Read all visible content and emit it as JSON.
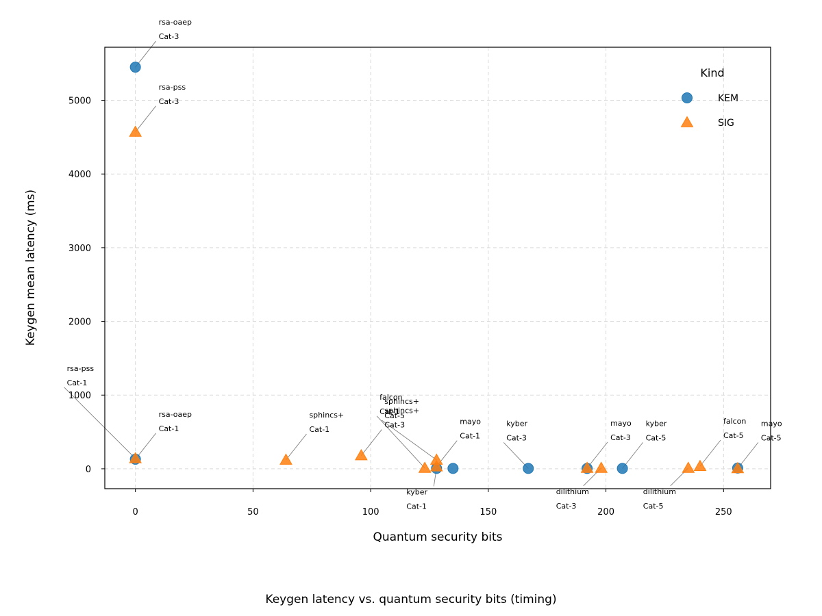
{
  "caption": "Keygen latency vs. quantum security bits (timing)",
  "chart_data": {
    "type": "scatter",
    "title": "",
    "xlabel": "Quantum security bits",
    "ylabel": "Keygen mean latency (ms)",
    "xlim": [
      -13,
      270
    ],
    "ylim": [
      -270,
      5720
    ],
    "xticks": [
      0,
      50,
      100,
      150,
      200,
      250
    ],
    "yticks": [
      0,
      1000,
      2000,
      3000,
      4000,
      5000
    ],
    "grid": true,
    "legend": {
      "title": "Kind",
      "placement": "top-right"
    },
    "colors": {
      "KEM": "#1f77b4",
      "SIG": "#ff7f0e"
    },
    "series": [
      {
        "name": "KEM",
        "marker": "circle",
        "points": [
          {
            "x": 0,
            "y": 5450,
            "label": [
              "rsa-oaep",
              "Cat-3"
            ]
          },
          {
            "x": 0,
            "y": 130,
            "label": [
              "rsa-oaep",
              "Cat-1"
            ]
          },
          {
            "x": 128,
            "y": 5,
            "label": [
              "kyber",
              "Cat-1"
            ]
          },
          {
            "x": 135,
            "y": 5,
            "label": []
          },
          {
            "x": 167,
            "y": 5,
            "label": [
              "kyber",
              "Cat-3"
            ]
          },
          {
            "x": 192,
            "y": 5,
            "label": []
          },
          {
            "x": 207,
            "y": 5,
            "label": [
              "kyber",
              "Cat-5"
            ]
          },
          {
            "x": 256,
            "y": 10,
            "label": []
          }
        ]
      },
      {
        "name": "SIG",
        "marker": "triangle",
        "points": [
          {
            "x": 0,
            "y": 4570,
            "label": [
              "rsa-pss",
              "Cat-3"
            ]
          },
          {
            "x": 0,
            "y": 140,
            "label": [
              "rsa-pss",
              "Cat-1"
            ]
          },
          {
            "x": 64,
            "y": 120,
            "label": [
              "sphincs+",
              "Cat-1"
            ]
          },
          {
            "x": 96,
            "y": 180,
            "label": [
              "sphincs+",
              "Cat-3"
            ]
          },
          {
            "x": 123,
            "y": 10,
            "label": [
              "falcon",
              "Cat-1"
            ]
          },
          {
            "x": 128,
            "y": 120,
            "label": [
              "sphincs+",
              "Cat-5"
            ]
          },
          {
            "x": 128,
            "y": 30,
            "label": [
              "mayo",
              "Cat-1"
            ]
          },
          {
            "x": 192,
            "y": 10,
            "label": [
              "mayo",
              "Cat-3"
            ]
          },
          {
            "x": 198,
            "y": 10,
            "label": [
              "dilithium",
              "Cat-3"
            ]
          },
          {
            "x": 235,
            "y": 10,
            "label": [
              "dilithium",
              "Cat-5"
            ]
          },
          {
            "x": 240,
            "y": 35,
            "label": [
              "falcon",
              "Cat-5"
            ]
          },
          {
            "x": 256,
            "y": 5,
            "label": [
              "mayo",
              "Cat-5"
            ]
          }
        ]
      }
    ]
  }
}
